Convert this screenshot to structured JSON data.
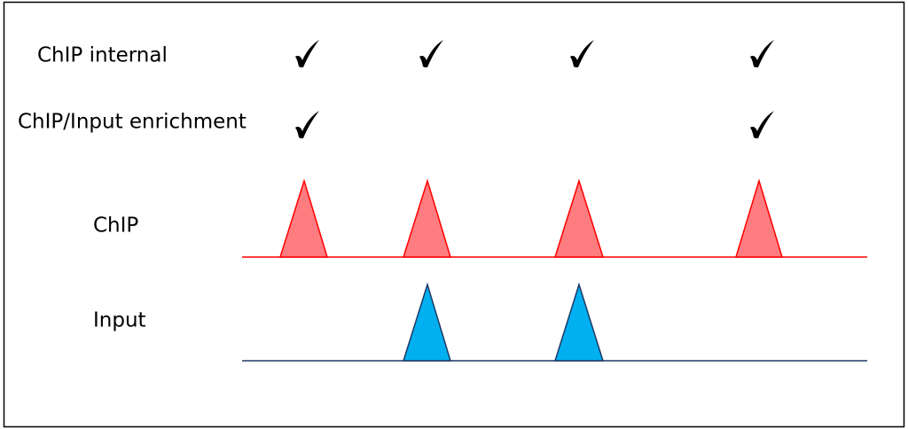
{
  "rows": [
    {
      "label": "ChIP internal"
    },
    {
      "label": "ChIP/Input enrichment"
    },
    {
      "label": "ChIP"
    },
    {
      "label": "Input"
    }
  ]
}
